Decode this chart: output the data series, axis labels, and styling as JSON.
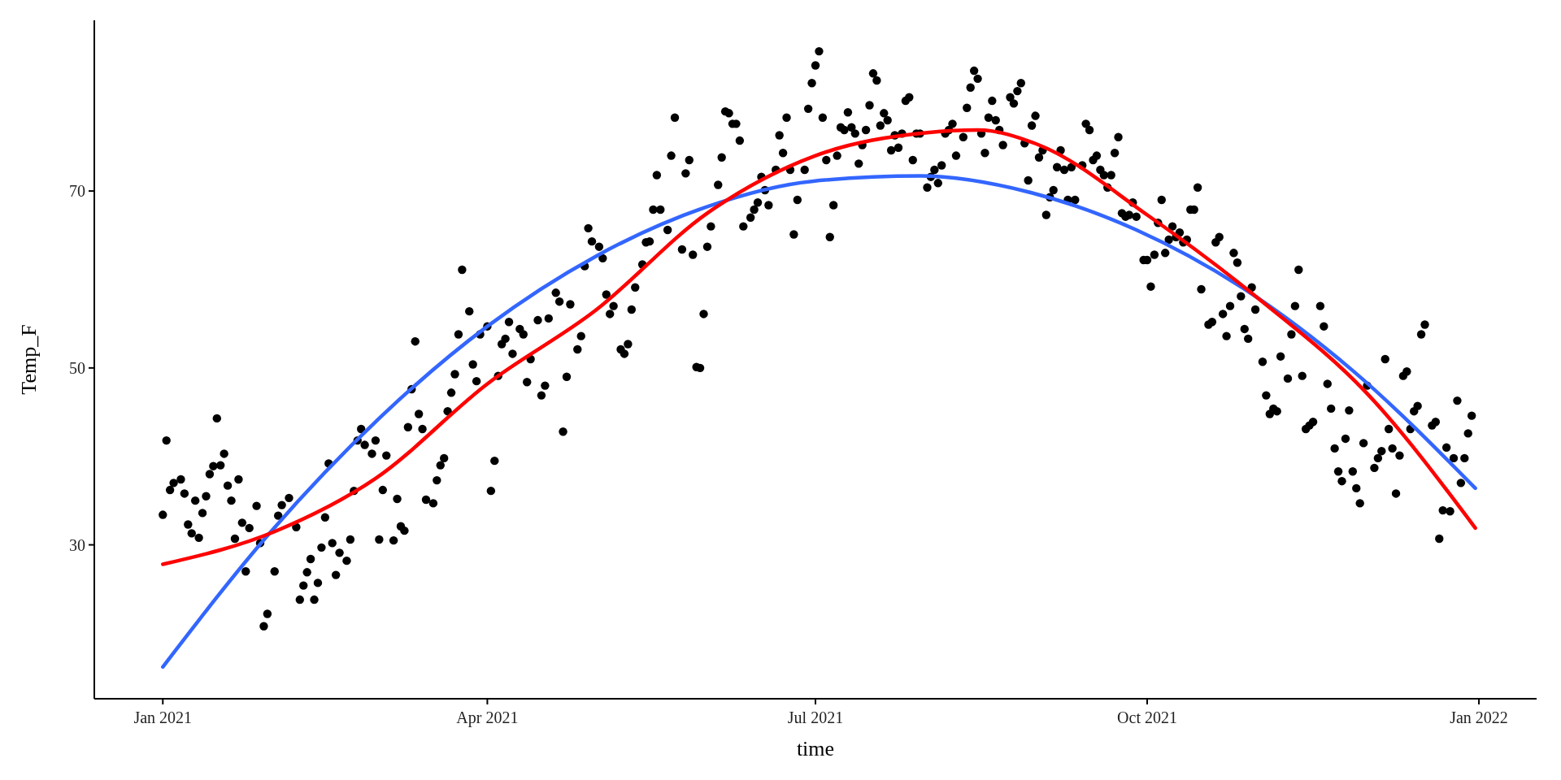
{
  "chart_data": {
    "type": "scatter",
    "xlabel": "time",
    "ylabel": "Temp_F",
    "xlim": [
      "2020-12-13",
      "2022-01-17"
    ],
    "ylim": [
      12.6,
      89.3
    ],
    "xticks": [
      {
        "value": "2021-01-01",
        "label": "Jan 2021"
      },
      {
        "value": "2021-04-01",
        "label": "Apr 2021"
      },
      {
        "value": "2021-07-01",
        "label": "Jul 2021"
      },
      {
        "value": "2021-10-01",
        "label": "Oct 2021"
      },
      {
        "value": "2022-01-01",
        "label": "Jan 2022"
      }
    ],
    "yticks": [
      30,
      50,
      70
    ],
    "grid": false,
    "series": [
      {
        "marker": "circle",
        "color": "#000000",
        "x": [
          "2021-01-01",
          "2021-01-02",
          "2021-01-03",
          "2021-01-04",
          "2021-01-06",
          "2021-01-07",
          "2021-01-08",
          "2021-01-09",
          "2021-01-10",
          "2021-01-11",
          "2021-01-12",
          "2021-01-13",
          "2021-01-14",
          "2021-01-15",
          "2021-01-16",
          "2021-01-17",
          "2021-01-18",
          "2021-01-19",
          "2021-01-20",
          "2021-01-21",
          "2021-01-22",
          "2021-01-23",
          "2021-01-24",
          "2021-01-25",
          "2021-01-27",
          "2021-01-28",
          "2021-01-29",
          "2021-01-30",
          "2021-02-01",
          "2021-02-02",
          "2021-02-03",
          "2021-02-05",
          "2021-02-07",
          "2021-02-08",
          "2021-02-09",
          "2021-02-10",
          "2021-02-11",
          "2021-02-12",
          "2021-02-13",
          "2021-02-14",
          "2021-02-15",
          "2021-02-16",
          "2021-02-17",
          "2021-02-18",
          "2021-02-19",
          "2021-02-21",
          "2021-02-22",
          "2021-02-23",
          "2021-02-24",
          "2021-02-25",
          "2021-02-26",
          "2021-02-28",
          "2021-03-01",
          "2021-03-02",
          "2021-03-03",
          "2021-03-04",
          "2021-03-06",
          "2021-03-07",
          "2021-03-08",
          "2021-03-09",
          "2021-03-10",
          "2021-03-11",
          "2021-03-12",
          "2021-03-13",
          "2021-03-14",
          "2021-03-15",
          "2021-03-17",
          "2021-03-18",
          "2021-03-19",
          "2021-03-20",
          "2021-03-21",
          "2021-03-22",
          "2021-03-23",
          "2021-03-24",
          "2021-03-25",
          "2021-03-27",
          "2021-03-28",
          "2021-03-29",
          "2021-03-30",
          "2021-04-01",
          "2021-04-02",
          "2021-04-03",
          "2021-04-04",
          "2021-04-05",
          "2021-04-06",
          "2021-04-07",
          "2021-04-08",
          "2021-04-10",
          "2021-04-11",
          "2021-04-12",
          "2021-04-13",
          "2021-04-15",
          "2021-04-16",
          "2021-04-17",
          "2021-04-18",
          "2021-04-20",
          "2021-04-21",
          "2021-04-22",
          "2021-04-23",
          "2021-04-24",
          "2021-04-26",
          "2021-04-27",
          "2021-04-28",
          "2021-04-29",
          "2021-04-30",
          "2021-05-02",
          "2021-05-03",
          "2021-05-04",
          "2021-05-05",
          "2021-05-06",
          "2021-05-08",
          "2021-05-09",
          "2021-05-10",
          "2021-05-11",
          "2021-05-12",
          "2021-05-14",
          "2021-05-15",
          "2021-05-16",
          "2021-05-17",
          "2021-05-18",
          "2021-05-19",
          "2021-05-21",
          "2021-05-22",
          "2021-05-23",
          "2021-05-25",
          "2021-05-26",
          "2021-05-27",
          "2021-05-28",
          "2021-05-29",
          "2021-05-30",
          "2021-05-31",
          "2021-06-01",
          "2021-06-02",
          "2021-06-04",
          "2021-06-05",
          "2021-06-06",
          "2021-06-07",
          "2021-06-08",
          "2021-06-09",
          "2021-06-10",
          "2021-06-11",
          "2021-06-13",
          "2021-06-14",
          "2021-06-15",
          "2021-06-16",
          "2021-06-17",
          "2021-06-18",
          "2021-06-20",
          "2021-06-21",
          "2021-06-22",
          "2021-06-23",
          "2021-06-24",
          "2021-06-25",
          "2021-06-26",
          "2021-06-28",
          "2021-06-29",
          "2021-06-30",
          "2021-07-01",
          "2021-07-02",
          "2021-07-03",
          "2021-07-04",
          "2021-07-05",
          "2021-07-06",
          "2021-07-07",
          "2021-07-08",
          "2021-07-09",
          "2021-07-10",
          "2021-07-11",
          "2021-07-12",
          "2021-07-13",
          "2021-07-14",
          "2021-07-15",
          "2021-07-16",
          "2021-07-17",
          "2021-07-18",
          "2021-07-19",
          "2021-07-20",
          "2021-07-21",
          "2021-07-22",
          "2021-07-23",
          "2021-07-24",
          "2021-07-25",
          "2021-07-26",
          "2021-07-27",
          "2021-07-28",
          "2021-07-29",
          "2021-07-30",
          "2021-08-01",
          "2021-08-02",
          "2021-08-03",
          "2021-08-04",
          "2021-08-05",
          "2021-08-06",
          "2021-08-07",
          "2021-08-08",
          "2021-08-09",
          "2021-08-11",
          "2021-08-12",
          "2021-08-13",
          "2021-08-14",
          "2021-08-15",
          "2021-08-16",
          "2021-08-17",
          "2021-08-18",
          "2021-08-19",
          "2021-08-20",
          "2021-08-21",
          "2021-08-22",
          "2021-08-24",
          "2021-08-25",
          "2021-08-26",
          "2021-08-27",
          "2021-08-28",
          "2021-08-29",
          "2021-08-30",
          "2021-08-31",
          "2021-09-01",
          "2021-09-02",
          "2021-09-03",
          "2021-09-04",
          "2021-09-05",
          "2021-09-06",
          "2021-09-07",
          "2021-09-08",
          "2021-09-09",
          "2021-09-10",
          "2021-09-11",
          "2021-09-13",
          "2021-09-14",
          "2021-09-15",
          "2021-09-16",
          "2021-09-17",
          "2021-09-18",
          "2021-09-19",
          "2021-09-20",
          "2021-09-21",
          "2021-09-22",
          "2021-09-23",
          "2021-09-24",
          "2021-09-25",
          "2021-09-26",
          "2021-09-27",
          "2021-09-28",
          "2021-09-30",
          "2021-10-01",
          "2021-10-02",
          "2021-10-03",
          "2021-10-04",
          "2021-10-05",
          "2021-10-06",
          "2021-10-07",
          "2021-10-08",
          "2021-10-09",
          "2021-10-10",
          "2021-10-11",
          "2021-10-12",
          "2021-10-13",
          "2021-10-14",
          "2021-10-15",
          "2021-10-16",
          "2021-10-18",
          "2021-10-19",
          "2021-10-20",
          "2021-10-21",
          "2021-10-22",
          "2021-10-23",
          "2021-10-24",
          "2021-10-25",
          "2021-10-26",
          "2021-10-27",
          "2021-10-28",
          "2021-10-29",
          "2021-10-30",
          "2021-10-31",
          "2021-11-02",
          "2021-11-03",
          "2021-11-04",
          "2021-11-05",
          "2021-11-06",
          "2021-11-07",
          "2021-11-09",
          "2021-11-10",
          "2021-11-11",
          "2021-11-12",
          "2021-11-13",
          "2021-11-14",
          "2021-11-15",
          "2021-11-16",
          "2021-11-18",
          "2021-11-19",
          "2021-11-20",
          "2021-11-21",
          "2021-11-22",
          "2021-11-23",
          "2021-11-24",
          "2021-11-25",
          "2021-11-26",
          "2021-11-27",
          "2021-11-28",
          "2021-11-29",
          "2021-11-30",
          "2021-12-01",
          "2021-12-03",
          "2021-12-04",
          "2021-12-05",
          "2021-12-06",
          "2021-12-07",
          "2021-12-08",
          "2021-12-09",
          "2021-12-10",
          "2021-12-11",
          "2021-12-12",
          "2021-12-13",
          "2021-12-14",
          "2021-12-15",
          "2021-12-16",
          "2021-12-17",
          "2021-12-19",
          "2021-12-20",
          "2021-12-21",
          "2021-12-22",
          "2021-12-23",
          "2021-12-24",
          "2021-12-25",
          "2021-12-26",
          "2021-12-27",
          "2021-12-28",
          "2021-12-29",
          "2021-12-30"
        ],
        "values": [
          33.4,
          41.8,
          36.2,
          37,
          37.4,
          35.8,
          32.3,
          31.3,
          35,
          30.8,
          33.6,
          35.5,
          38,
          38.9,
          44.3,
          39,
          40.3,
          36.7,
          35,
          30.7,
          37.4,
          32.5,
          27,
          31.9,
          34.4,
          30.2,
          20.8,
          22.2,
          27,
          33.3,
          34.5,
          35.3,
          32,
          23.8,
          25.4,
          26.9,
          28.4,
          23.8,
          25.7,
          29.7,
          33.1,
          39.2,
          30.2,
          26.6,
          29.1,
          28.2,
          30.6,
          36.1,
          41.8,
          43.1,
          41.3,
          40.3,
          41.8,
          30.6,
          36.2,
          40.1,
          30.5,
          35.2,
          32.1,
          31.6,
          43.3,
          47.6,
          53,
          44.8,
          43.1,
          35.1,
          34.7,
          37.3,
          39,
          39.8,
          45.1,
          47.2,
          49.3,
          53.8,
          61.1,
          56.4,
          50.4,
          48.5,
          53.8,
          54.7,
          36.1,
          39.5,
          49.1,
          52.7,
          53.3,
          55.2,
          51.6,
          54.4,
          53.8,
          48.4,
          51,
          55.4,
          46.9,
          48,
          55.6,
          58.5,
          57.5,
          42.8,
          49,
          57.2,
          52.1,
          53.6,
          61.5,
          65.8,
          64.3,
          63.7,
          62.4,
          58.3,
          56.1,
          57,
          52.1,
          51.6,
          52.7,
          56.6,
          59.1,
          61.7,
          64.2,
          64.3,
          67.9,
          71.8,
          67.9,
          65.6,
          74,
          78.3,
          63.4,
          72,
          73.5,
          62.8,
          50.1,
          50,
          56.1,
          63.7,
          66,
          70.7,
          73.8,
          79,
          78.8,
          77.6,
          77.6,
          75.7,
          66,
          67,
          67.9,
          68.7,
          71.6,
          70.1,
          68.4,
          72.4,
          76.3,
          74.3,
          78.3,
          72.4,
          65.1,
          69,
          72.4,
          79.3,
          82.2,
          84.2,
          85.8,
          78.3,
          73.5,
          64.8,
          68.4,
          74,
          77.2,
          76.9,
          78.9,
          77.2,
          76.5,
          73.1,
          75.2,
          76.9,
          79.7,
          83.3,
          82.5,
          77.4,
          78.8,
          78,
          74.6,
          76.3,
          74.9,
          76.5,
          80.2,
          80.6,
          73.5,
          76.5,
          76.5,
          70.4,
          71.6,
          72.4,
          70.9,
          72.9,
          76.5,
          76.9,
          77.6,
          74,
          76.1,
          79.4,
          81.7,
          83.6,
          82.7,
          76.5,
          74.3,
          78.3,
          80.2,
          78,
          76.9,
          75.2,
          80.6,
          79.9,
          81.3,
          82.2,
          75.4,
          71.2,
          77.4,
          78.5,
          73.8,
          74.6,
          67.3,
          69.3,
          70.1,
          72.7,
          74.6,
          72.4,
          69,
          72.7,
          69,
          72.9,
          77.6,
          76.9,
          73.5,
          74,
          72.4,
          71.8,
          70.4,
          71.8,
          74.3,
          76.1,
          67.5,
          67.1,
          67.3,
          68.7,
          67.1,
          62.2,
          62.2,
          59.2,
          62.8,
          66.4,
          69,
          63,
          64.5,
          66,
          64.8,
          65.3,
          64.2,
          64.5,
          67.9,
          67.9,
          70.4,
          58.9,
          54.9,
          55.2,
          64.2,
          64.8,
          56.1,
          53.6,
          57,
          63,
          61.9,
          58.1,
          54.4,
          53.3,
          59.1,
          56.6,
          50.7,
          46.9,
          44.8,
          45.4,
          45.1,
          51.3,
          48.8,
          53.8,
          57,
          61.1,
          49.1,
          43.1,
          43.5,
          43.9,
          57,
          54.7,
          48.2,
          45.4,
          40.9,
          38.3,
          37.2,
          42,
          45.2,
          38.3,
          36.4,
          34.7,
          41.5,
          48,
          38.7,
          39.8,
          40.6,
          51,
          43.1,
          40.9,
          35.8,
          40.1,
          49.1,
          49.6,
          43.1,
          45.1,
          45.7,
          53.8,
          54.9,
          43.5,
          43.9,
          30.7,
          33.9,
          41,
          33.8,
          39.8,
          46.3,
          37,
          39.8,
          42.6,
          44.6
        ]
      },
      {
        "type": "line",
        "color": "#3366ff",
        "x": [
          "2021-01-01",
          "2021-01-31",
          "2021-03-02",
          "2021-04-01",
          "2021-05-01",
          "2021-05-31",
          "2021-06-30",
          "2021-07-30",
          "2021-08-29",
          "2021-09-28",
          "2021-10-28",
          "2021-11-27",
          "2021-12-31"
        ],
        "values": [
          16.2,
          31.5,
          44.3,
          54.7,
          62.6,
          68.1,
          71.1,
          71.7,
          69.9,
          65.6,
          58.9,
          49.7,
          36.4
        ]
      },
      {
        "type": "line",
        "color": "#ff0000",
        "x": [
          "2021-01-01",
          "2021-02-01",
          "2021-03-01",
          "2021-04-01",
          "2021-05-01",
          "2021-06-01",
          "2021-07-01",
          "2021-08-01",
          "2021-08-15",
          "2021-09-01",
          "2021-10-01",
          "2021-11-01",
          "2021-12-01",
          "2021-12-31"
        ],
        "values": [
          27.8,
          31.5,
          37.5,
          48.2,
          56.5,
          67.5,
          74,
          76.6,
          76.9,
          75.2,
          67.3,
          57.8,
          47.1,
          31.9
        ]
      }
    ]
  }
}
